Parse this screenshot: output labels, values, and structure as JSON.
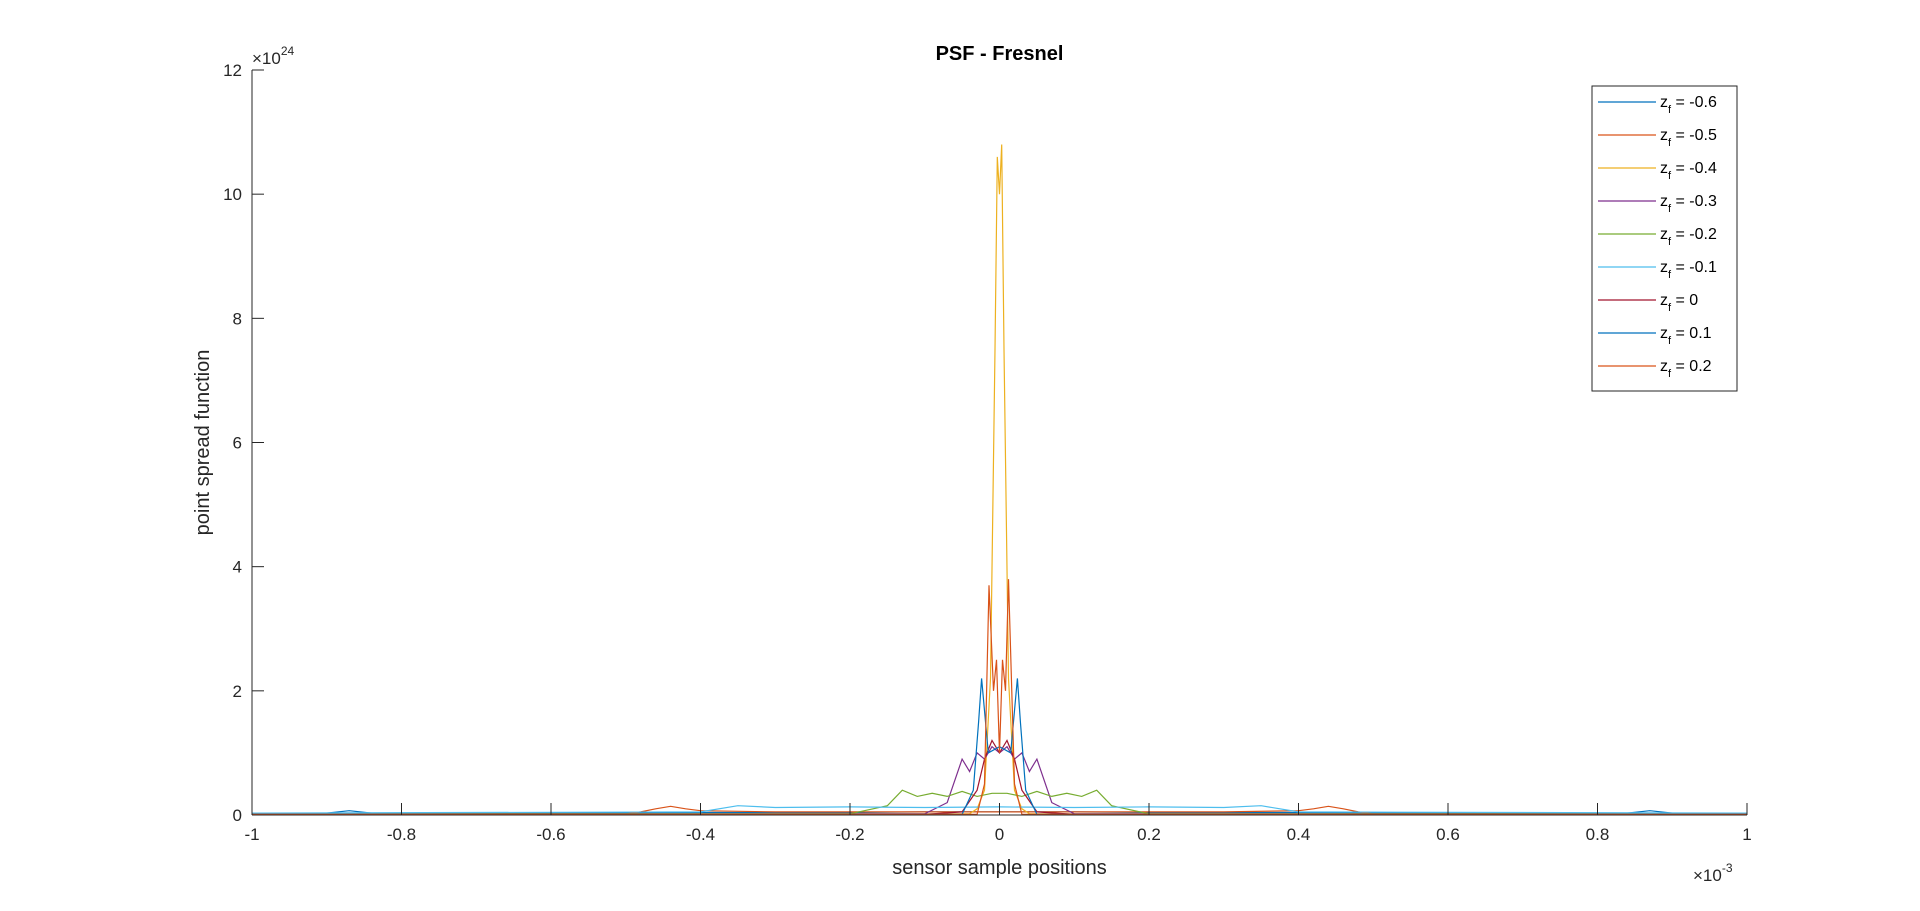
{
  "chart_data": {
    "type": "line",
    "title": "PSF - Fresnel",
    "xlabel": "sensor sample positions",
    "ylabel": "point spread function",
    "x_exponent": {
      "base": "×10",
      "power": "-3"
    },
    "y_exponent": {
      "base": "×10",
      "power": "24"
    },
    "xlim": [
      -1,
      1
    ],
    "ylim": [
      0,
      12
    ],
    "x_ticks": [
      -1,
      -0.8,
      -0.6,
      -0.4,
      -0.2,
      0,
      0.2,
      0.4,
      0.6,
      0.8,
      1
    ],
    "x_tick_labels": [
      "-1",
      "-0.8",
      "-0.6",
      "-0.4",
      "-0.2",
      "0",
      "0.2",
      "0.4",
      "0.6",
      "0.8",
      "1"
    ],
    "y_ticks": [
      0,
      2,
      4,
      6,
      8,
      10,
      12
    ],
    "y_tick_labels": [
      "0",
      "2",
      "4",
      "6",
      "8",
      "10",
      "12"
    ],
    "grid": false,
    "legend_position": "top-right",
    "series": [
      {
        "legend_base": "z",
        "legend_sub": "f",
        "legend_value": " = -0.6",
        "color": "#0072BD",
        "x": [
          -1,
          -0.9,
          -0.87,
          -0.84,
          -0.8,
          -0.6,
          -0.4,
          -0.2,
          -0.1,
          0,
          0.1,
          0.2,
          0.4,
          0.6,
          0.8,
          0.84,
          0.87,
          0.9,
          1
        ],
        "y": [
          0.03,
          0.03,
          0.07,
          0.03,
          0.03,
          0.03,
          0.04,
          0.04,
          0.05,
          0.05,
          0.05,
          0.04,
          0.04,
          0.03,
          0.03,
          0.03,
          0.07,
          0.03,
          0.03
        ]
      },
      {
        "legend_base": "z",
        "legend_sub": "f",
        "legend_value": " = -0.5",
        "color": "#D95319",
        "x": [
          -1,
          -0.5,
          -0.48,
          -0.46,
          -0.44,
          -0.42,
          -0.4,
          -0.3,
          -0.1,
          0,
          0.1,
          0.3,
          0.4,
          0.42,
          0.44,
          0.46,
          0.48,
          0.5,
          1
        ],
        "y": [
          0.02,
          0.02,
          0.05,
          0.1,
          0.14,
          0.1,
          0.07,
          0.05,
          0.05,
          0.05,
          0.05,
          0.05,
          0.07,
          0.1,
          0.14,
          0.1,
          0.05,
          0.02,
          0.02
        ]
      },
      {
        "legend_base": "z",
        "legend_sub": "f",
        "legend_value": " = -0.4",
        "color": "#EDB120",
        "x": [
          -1,
          -0.04,
          -0.03,
          -0.02,
          -0.012,
          -0.006,
          -0.003,
          0,
          0.003,
          0.006,
          0.012,
          0.02,
          0.03,
          0.04,
          1
        ],
        "y": [
          0.02,
          0.02,
          0.1,
          0.4,
          2.2,
          7.5,
          10.6,
          10.0,
          10.8,
          7.5,
          2.2,
          0.4,
          0.1,
          0.02,
          0.02
        ]
      },
      {
        "legend_base": "z",
        "legend_sub": "f",
        "legend_value": " = -0.3",
        "color": "#7E2F8E",
        "x": [
          -1,
          -0.1,
          -0.07,
          -0.05,
          -0.04,
          -0.03,
          -0.02,
          -0.01,
          0,
          0.01,
          0.02,
          0.03,
          0.04,
          0.05,
          0.07,
          0.1,
          1
        ],
        "y": [
          0.02,
          0.02,
          0.2,
          0.9,
          0.7,
          1.0,
          0.9,
          1.1,
          1.0,
          1.1,
          0.9,
          1.0,
          0.7,
          0.9,
          0.2,
          0.02,
          0.02
        ]
      },
      {
        "legend_base": "z",
        "legend_sub": "f",
        "legend_value": " = -0.2",
        "color": "#77AC30",
        "x": [
          -1,
          -0.2,
          -0.15,
          -0.13,
          -0.11,
          -0.09,
          -0.07,
          -0.05,
          -0.03,
          -0.01,
          0.01,
          0.03,
          0.05,
          0.07,
          0.09,
          0.11,
          0.13,
          0.15,
          0.2,
          1
        ],
        "y": [
          0.02,
          0.02,
          0.15,
          0.4,
          0.3,
          0.35,
          0.3,
          0.38,
          0.3,
          0.35,
          0.35,
          0.3,
          0.38,
          0.3,
          0.35,
          0.3,
          0.4,
          0.15,
          0.02,
          0.02
        ]
      },
      {
        "legend_base": "z",
        "legend_sub": "f",
        "legend_value": " = -0.1",
        "color": "#4DBEEE",
        "x": [
          -1,
          -0.4,
          -0.35,
          -0.3,
          -0.2,
          -0.1,
          0,
          0.1,
          0.2,
          0.3,
          0.35,
          0.4,
          1
        ],
        "y": [
          0.03,
          0.05,
          0.15,
          0.12,
          0.13,
          0.12,
          0.13,
          0.12,
          0.13,
          0.12,
          0.15,
          0.05,
          0.03
        ]
      },
      {
        "legend_base": "z",
        "legend_sub": "f",
        "legend_value": " = 0",
        "color": "#A2142F",
        "x": [
          -1,
          -0.1,
          -0.05,
          -0.03,
          -0.02,
          -0.01,
          0,
          0.01,
          0.02,
          0.03,
          0.05,
          0.1,
          1
        ],
        "y": [
          0.01,
          0.01,
          0.05,
          0.4,
          0.9,
          1.2,
          1.0,
          1.2,
          0.9,
          0.4,
          0.05,
          0.01,
          0.01
        ]
      },
      {
        "legend_base": "z",
        "legend_sub": "f",
        "legend_value": " = 0.1",
        "color": "#0072BD",
        "x": [
          -1,
          -0.05,
          -0.035,
          -0.028,
          -0.024,
          -0.015,
          0,
          0.015,
          0.024,
          0.028,
          0.035,
          0.05,
          1
        ],
        "y": [
          0.01,
          0.01,
          0.4,
          1.5,
          2.2,
          1.0,
          1.1,
          1.0,
          2.2,
          1.5,
          0.4,
          0.01,
          0.01
        ]
      },
      {
        "legend_base": "z",
        "legend_sub": "f",
        "legend_value": " = 0.2",
        "color": "#D95319",
        "x": [
          -1,
          -0.03,
          -0.02,
          -0.014,
          -0.008,
          -0.004,
          0,
          0.004,
          0.008,
          0.012,
          0.02,
          0.03,
          1
        ],
        "y": [
          0.01,
          0.01,
          0.5,
          3.7,
          2.0,
          2.5,
          1.0,
          2.5,
          2.0,
          3.8,
          0.5,
          0.01,
          0.01
        ]
      }
    ]
  }
}
